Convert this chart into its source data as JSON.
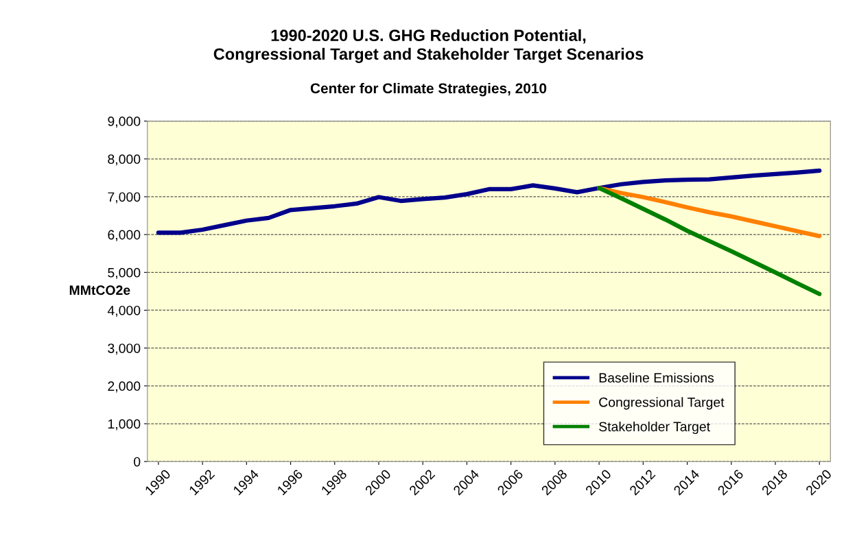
{
  "chart_data": {
    "type": "line",
    "title": "1990-2020 U.S. GHG Reduction Potential,\nCongressional Target and Stakeholder Target Scenarios",
    "subtitle": "Center for Climate Strategies, 2010",
    "ylabel": "MMtCO2e",
    "xlim": [
      1989.5,
      2020.5
    ],
    "xticks": [
      1990,
      1992,
      1994,
      1996,
      1998,
      2000,
      2002,
      2004,
      2006,
      2008,
      2010,
      2012,
      2014,
      2016,
      2018,
      2020
    ],
    "ylim": [
      0,
      9000
    ],
    "yticks": [
      {
        "value": 0,
        "label": "0"
      },
      {
        "value": 1000,
        "label": "1,000"
      },
      {
        "value": 2000,
        "label": "2,000"
      },
      {
        "value": 3000,
        "label": "3,000"
      },
      {
        "value": 4000,
        "label": "4,000"
      },
      {
        "value": 5000,
        "label": "5,000"
      },
      {
        "value": 6000,
        "label": "6,000"
      },
      {
        "value": 7000,
        "label": "7,000"
      },
      {
        "value": 8000,
        "label": "8,000"
      },
      {
        "value": 9000,
        "label": "9,000"
      }
    ],
    "grid": "y",
    "legend": "bottom right",
    "series": [
      {
        "name": "Baseline Emissions",
        "color": "#00008b",
        "x": [
          1990,
          1991,
          1992,
          1993,
          1994,
          1995,
          1996,
          1997,
          1998,
          1999,
          2000,
          2001,
          2002,
          2003,
          2004,
          2005,
          2006,
          2007,
          2008,
          2009,
          2010,
          2011,
          2012,
          2013,
          2014,
          2015,
          2016,
          2017,
          2018,
          2019,
          2020
        ],
        "values": [
          6050,
          6050,
          6130,
          6250,
          6370,
          6440,
          6650,
          6700,
          6750,
          6820,
          6990,
          6890,
          6940,
          6980,
          7070,
          7200,
          7200,
          7300,
          7220,
          7120,
          7230,
          7330,
          7390,
          7430,
          7450,
          7460,
          7510,
          7560,
          7600,
          7640,
          7690
        ]
      },
      {
        "name": "Congressional Target",
        "color": "#ff8000",
        "x": [
          2010,
          2011,
          2012,
          2013,
          2014,
          2015,
          2016,
          2017,
          2018,
          2019,
          2020
        ],
        "values": [
          7230,
          7100,
          6990,
          6860,
          6720,
          6590,
          6480,
          6350,
          6220,
          6090,
          5960
        ]
      },
      {
        "name": "Stakeholder Target",
        "color": "#008000",
        "x": [
          2010,
          2011,
          2012,
          2013,
          2014,
          2015,
          2016,
          2017,
          2018,
          2019,
          2020
        ],
        "values": [
          7230,
          6960,
          6680,
          6400,
          6100,
          5830,
          5560,
          5280,
          5000,
          4710,
          4430
        ]
      }
    ]
  }
}
